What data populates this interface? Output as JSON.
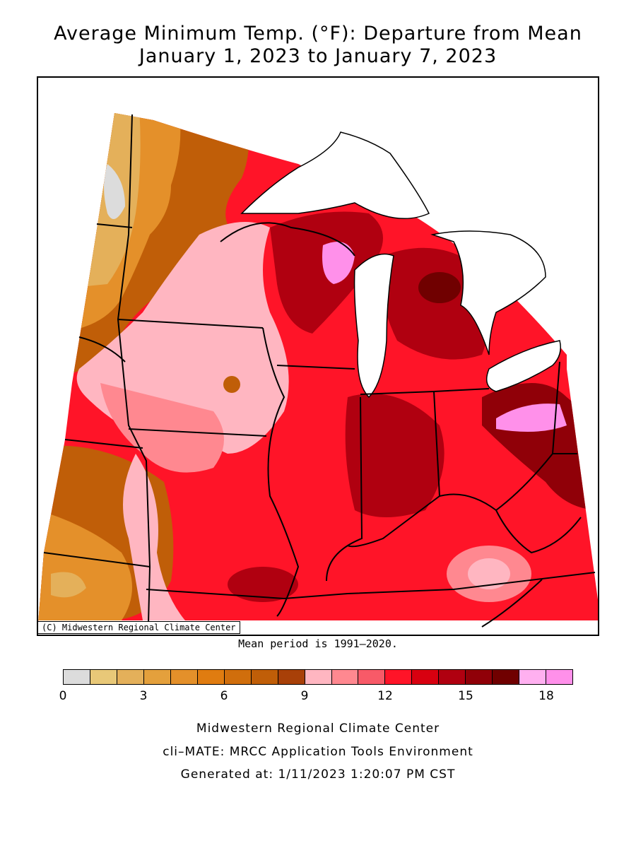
{
  "title_line1": "Average Minimum Temp. (°F): Departure from Mean",
  "title_line2": "January 1, 2023 to January 7, 2023",
  "credit_label": "(C) Midwestern Regional Climate Center",
  "mean_period": "Mean period is 1991–2020.",
  "legend": {
    "colors": [
      "#dcdcdc",
      "#e8c878",
      "#e4b05a",
      "#e4a03c",
      "#e4902a",
      "#e07c10",
      "#d06e0c",
      "#c05e08",
      "#a84008",
      "#ffb6c1",
      "#ff8890",
      "#f85a68",
      "#ff1428",
      "#d80010",
      "#b00010",
      "#900008",
      "#700000",
      "#ffb0f0",
      "#ff90ea"
    ],
    "ticks": [
      "0",
      "3",
      "6",
      "9",
      "12",
      "15",
      "18"
    ]
  },
  "footer": {
    "line1": "Midwestern Regional Climate Center",
    "line2": "cli–MATE: MRCC Application Tools Environment",
    "line3": "Generated at: 1/11/2023 1:20:07 PM CST"
  }
}
